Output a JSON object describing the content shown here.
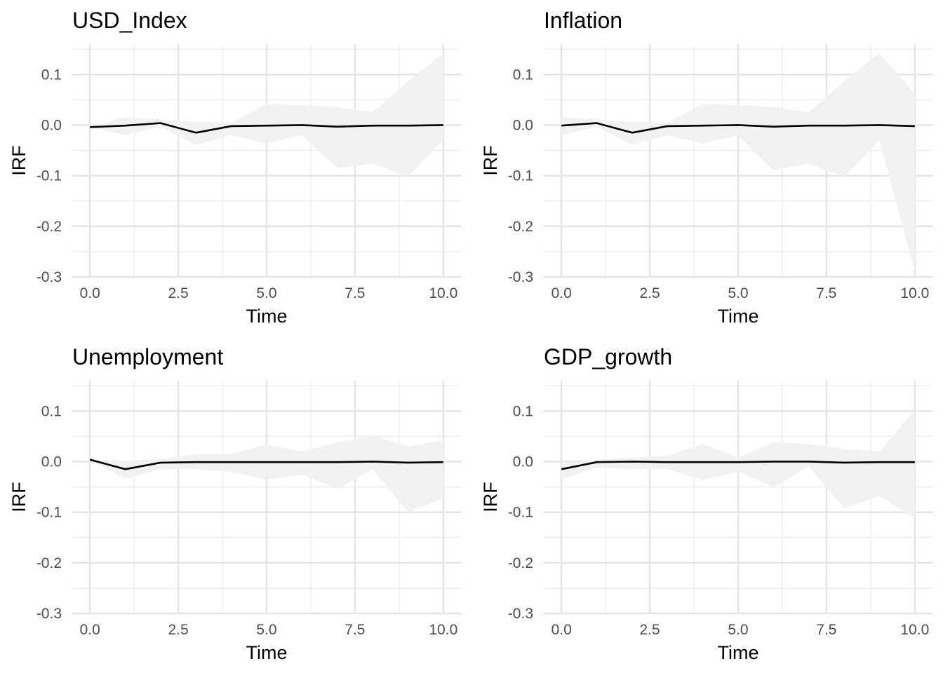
{
  "chart_data": [
    {
      "type": "line",
      "title": "USD_Index",
      "xlabel": "Time",
      "ylabel": "IRF",
      "xlim": [
        -0.5,
        10.5
      ],
      "ylim": [
        -0.3,
        0.16
      ],
      "x_ticks": [
        "0.0",
        "2.5",
        "5.0",
        "7.5",
        "10.0"
      ],
      "y_ticks": [
        "0.1",
        "0.0",
        "-0.1",
        "-0.2",
        "-0.3"
      ],
      "grid": true,
      "x": [
        0,
        1,
        2,
        3,
        4,
        5,
        6,
        7,
        8,
        9,
        10
      ],
      "irf": [
        -0.004,
        -0.001,
        0.004,
        -0.015,
        -0.002,
        -0.001,
        0.0,
        -0.003,
        -0.001,
        -0.001,
        0.0
      ],
      "lower": [
        -0.004,
        -0.02,
        -0.003,
        -0.039,
        -0.02,
        -0.036,
        -0.02,
        -0.085,
        -0.076,
        -0.102,
        -0.03
      ],
      "upper": [
        -0.004,
        0.016,
        0.011,
        0.006,
        0.005,
        0.042,
        0.039,
        0.036,
        0.025,
        0.087,
        0.142
      ],
      "band_color": "#f2f2f2",
      "line_color": "#000000"
    },
    {
      "type": "line",
      "title": "Inflation",
      "xlabel": "Time",
      "ylabel": "IRF",
      "xlim": [
        -0.5,
        10.5
      ],
      "ylim": [
        -0.3,
        0.16
      ],
      "x_ticks": [
        "0.0",
        "2.5",
        "5.0",
        "7.5",
        "10.0"
      ],
      "y_ticks": [
        "0.1",
        "0.0",
        "-0.1",
        "-0.2",
        "-0.3"
      ],
      "grid": true,
      "x": [
        0,
        1,
        2,
        3,
        4,
        5,
        6,
        7,
        8,
        9,
        10
      ],
      "irf": [
        -0.001,
        0.004,
        -0.015,
        -0.002,
        -0.001,
        0.0,
        -0.003,
        -0.001,
        -0.001,
        0.0,
        -0.002
      ],
      "lower": [
        -0.02,
        -0.003,
        -0.039,
        -0.02,
        -0.036,
        -0.02,
        -0.089,
        -0.076,
        -0.102,
        -0.03,
        -0.29
      ],
      "upper": [
        0.016,
        0.011,
        0.006,
        0.005,
        0.042,
        0.039,
        0.036,
        0.025,
        0.087,
        0.142,
        0.062
      ],
      "band_color": "#f2f2f2",
      "line_color": "#000000"
    },
    {
      "type": "line",
      "title": "Unemployment",
      "xlabel": "Time",
      "ylabel": "IRF",
      "xlim": [
        -0.5,
        10.5
      ],
      "ylim": [
        -0.3,
        0.16
      ],
      "x_ticks": [
        "0.0",
        "2.5",
        "5.0",
        "7.5",
        "10.0"
      ],
      "y_ticks": [
        "0.1",
        "0.0",
        "-0.1",
        "-0.2",
        "-0.3"
      ],
      "grid": true,
      "x": [
        0,
        1,
        2,
        3,
        4,
        5,
        6,
        7,
        8,
        9,
        10
      ],
      "irf": [
        0.004,
        -0.015,
        -0.002,
        -0.001,
        -0.001,
        -0.001,
        -0.001,
        -0.001,
        0.0,
        -0.002,
        -0.001
      ],
      "lower": [
        0.004,
        -0.034,
        -0.015,
        -0.015,
        -0.02,
        -0.036,
        -0.025,
        -0.054,
        -0.015,
        -0.1,
        -0.072
      ],
      "upper": [
        0.004,
        0.002,
        0.005,
        0.015,
        0.015,
        0.034,
        0.02,
        0.038,
        0.052,
        0.03,
        0.042
      ],
      "band_color": "#f2f2f2",
      "line_color": "#000000"
    },
    {
      "type": "line",
      "title": "GDP_growth",
      "xlabel": "Time",
      "ylabel": "IRF",
      "xlim": [
        -0.5,
        10.5
      ],
      "ylim": [
        -0.3,
        0.16
      ],
      "x_ticks": [
        "0.0",
        "2.5",
        "5.0",
        "7.5",
        "10.0"
      ],
      "y_ticks": [
        "0.1",
        "0.0",
        "-0.1",
        "-0.2",
        "-0.3"
      ],
      "grid": true,
      "x": [
        0,
        1,
        2,
        3,
        4,
        5,
        6,
        7,
        8,
        9,
        10
      ],
      "irf": [
        -0.015,
        -0.001,
        0.0,
        -0.001,
        -0.001,
        -0.001,
        0.0,
        0.0,
        -0.002,
        -0.001,
        -0.001
      ],
      "lower": [
        -0.034,
        -0.012,
        -0.015,
        -0.015,
        -0.036,
        -0.02,
        -0.05,
        -0.01,
        -0.092,
        -0.068,
        -0.112
      ],
      "upper": [
        -0.004,
        0.004,
        0.008,
        0.012,
        0.035,
        0.008,
        0.038,
        0.035,
        0.025,
        0.02,
        0.102
      ],
      "band_color": "#f2f2f2",
      "line_color": "#000000"
    }
  ]
}
